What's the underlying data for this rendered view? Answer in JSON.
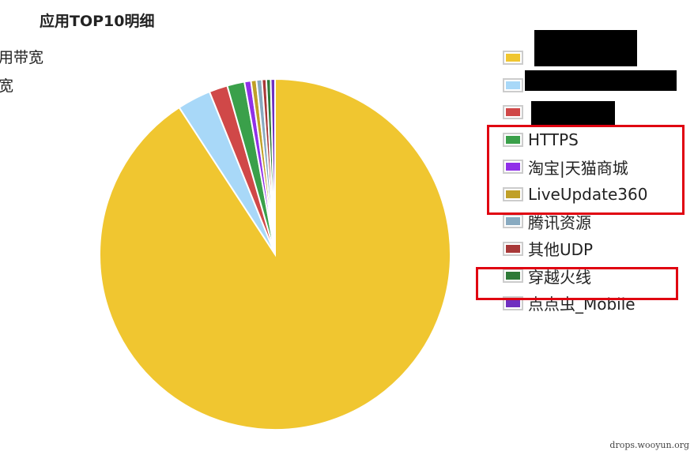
{
  "chart_data": {
    "type": "pie",
    "title": "应用TOP10明细",
    "legend_position": "right",
    "slices": [
      {
        "label": "",
        "value": 90.8,
        "color": "#f0c630",
        "redacted": true
      },
      {
        "label": "",
        "value": 3.1,
        "color": "#a8d8f8",
        "redacted": true
      },
      {
        "label": "",
        "value": 1.7,
        "color": "#d04848",
        "redacted": true
      },
      {
        "label": "HTTPS",
        "value": 1.6,
        "color": "#3aa04a"
      },
      {
        "label": "淘宝|天猫商城",
        "value": 0.6,
        "color": "#9030e8"
      },
      {
        "label": "LiveUpdate360",
        "value": 0.5,
        "color": "#c0a028"
      },
      {
        "label": "腾讯资源",
        "value": 0.5,
        "color": "#88aac0"
      },
      {
        "label": "其他UDP",
        "value": 0.4,
        "color": "#a83838"
      },
      {
        "label": "穿越火线",
        "value": 0.4,
        "color": "#2e7a38"
      },
      {
        "label": "点点虫_Mobile",
        "value": 0.4,
        "color": "#7030c0"
      }
    ]
  },
  "left_labels": [
    "用带宽",
    "宽"
  ],
  "watermark": "drops.wooyun.org"
}
